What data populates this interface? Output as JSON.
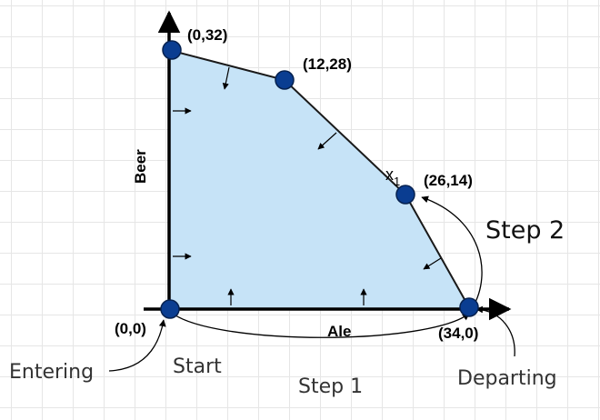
{
  "colors": {
    "region_fill": "#c6e3f7",
    "region_edge": "#1a1a1a",
    "point_fill": "#0a3d91",
    "point_stroke": "#06214f"
  },
  "axes": {
    "x_label": "Ale",
    "y_label": "Beer"
  },
  "points": [
    {
      "id": "p-0-0",
      "label": "(0,0)"
    },
    {
      "id": "p-0-32",
      "label": "(0,32)"
    },
    {
      "id": "p-12-28",
      "label": "(12,28)"
    },
    {
      "id": "p-26-14",
      "label": "(26,14)"
    },
    {
      "id": "p-34-0",
      "label": "(34,0)"
    }
  ],
  "variable_label": "x",
  "variable_subscript": "1",
  "annotations": {
    "entering": "Entering",
    "start": "Start",
    "step1": "Step 1",
    "step2": "Step 2",
    "departing": "Departing"
  }
}
